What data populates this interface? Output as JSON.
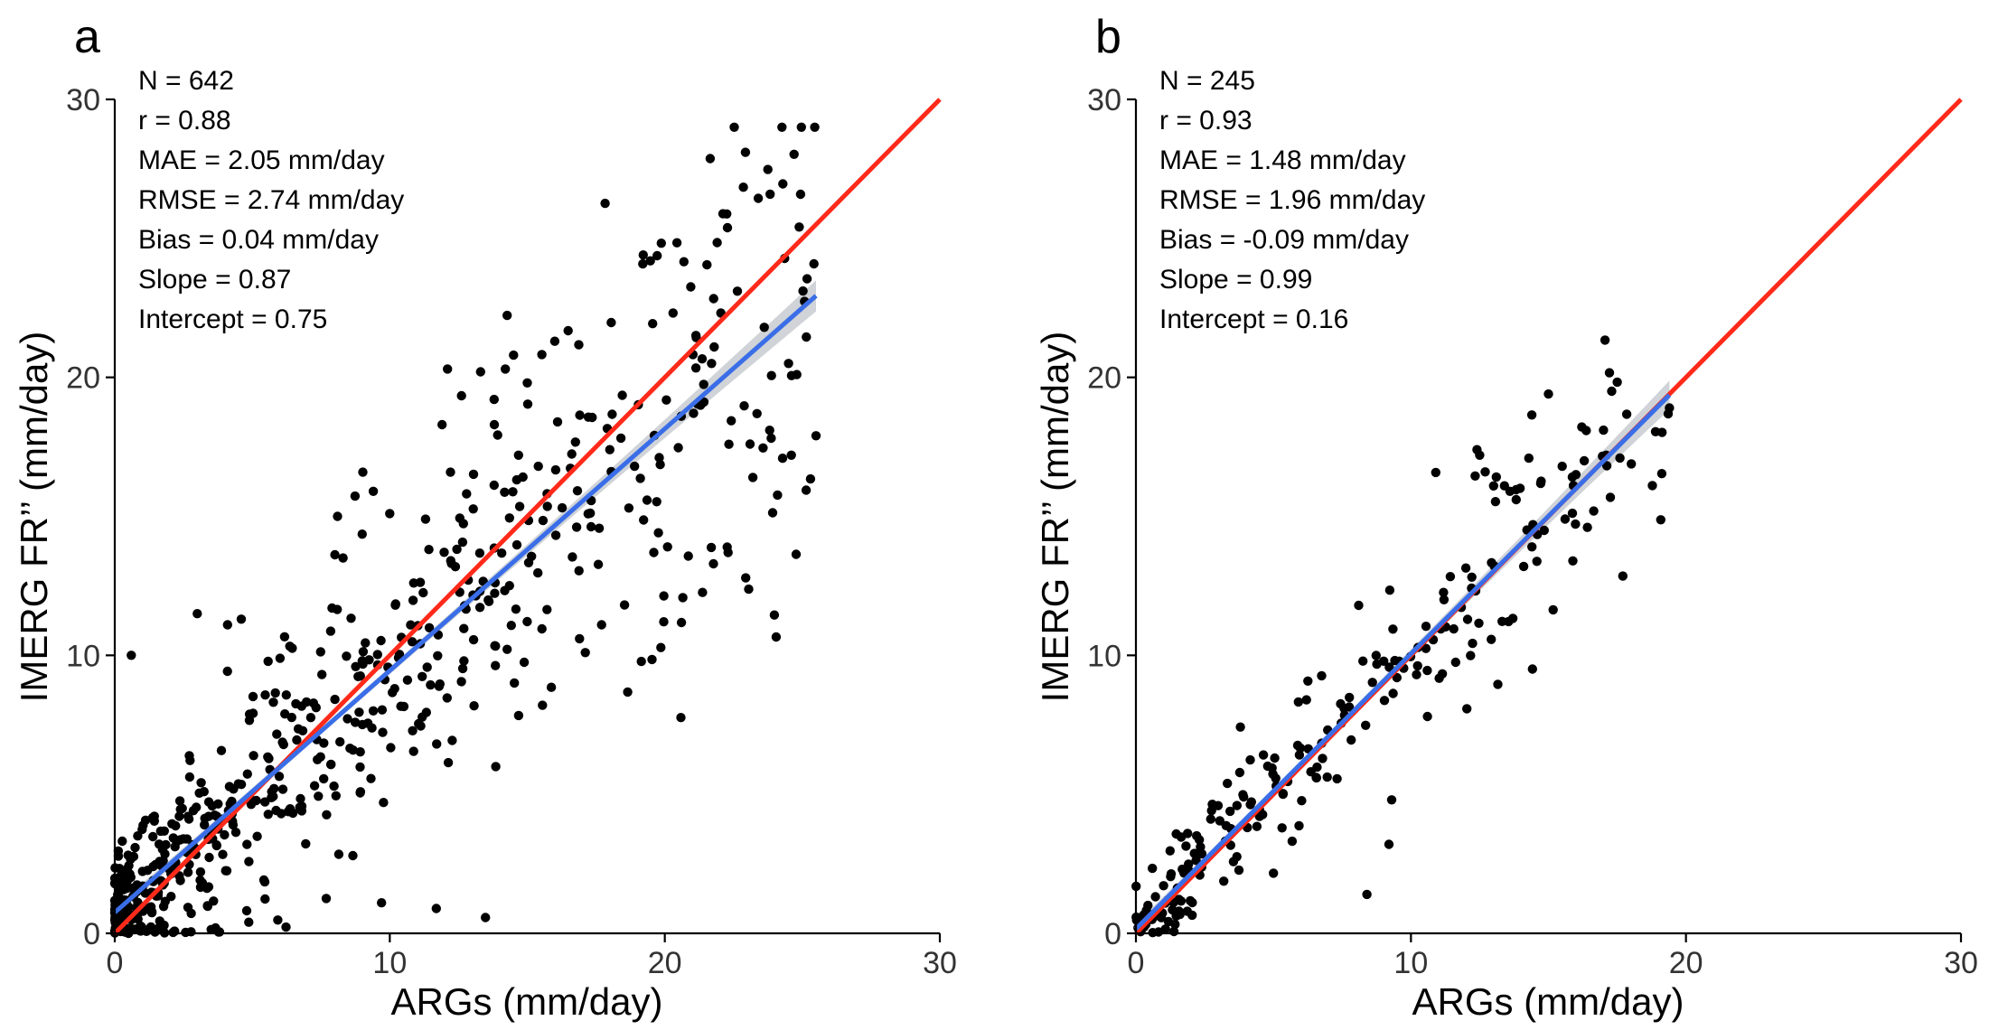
{
  "chart_data": [
    {
      "type": "scatter",
      "panel": "a",
      "xlabel": "ARGs (mm/day)",
      "ylabel": "IMERG FR’’ (mm/day)",
      "xlim": [
        0,
        30
      ],
      "ylim": [
        0,
        30
      ],
      "xticks": [
        "0",
        "10",
        "20",
        "30"
      ],
      "yticks": [
        "0",
        "10",
        "20",
        "30"
      ],
      "grid": false,
      "stats": [
        "N = 642",
        "r = 0.88",
        "MAE = 2.05 mm/day",
        "RMSE = 2.74 mm/day",
        "Bias = 0.04 mm/day",
        "Slope = 0.87",
        "Intercept = 0.75"
      ],
      "one_to_one_line": {
        "color": "#ff2a1a",
        "x": [
          0,
          30
        ],
        "y": [
          0,
          30
        ]
      },
      "regression": {
        "color": "#3a6ee8",
        "slope": 0.87,
        "intercept": 0.75,
        "x_range": [
          0,
          25.5
        ],
        "ci_color": "#c8cbd0"
      },
      "n_points": 642,
      "x_max": 25.5,
      "points_sample": [
        [
          0.6,
          10.0
        ],
        [
          3.0,
          11.5
        ],
        [
          4.1,
          11.1
        ],
        [
          4.6,
          11.3
        ],
        [
          7.9,
          11.7
        ],
        [
          8.1,
          15.0
        ],
        [
          8.3,
          13.5
        ],
        [
          9.4,
          15.9
        ],
        [
          9.7,
          1.1
        ],
        [
          10.0,
          15.1
        ],
        [
          11.3,
          14.9
        ],
        [
          11.9,
          18.3
        ],
        [
          12.1,
          20.3
        ],
        [
          13.3,
          20.2
        ],
        [
          13.8,
          18.3
        ],
        [
          14.2,
          20.3
        ],
        [
          14.5,
          20.8
        ],
        [
          15.0,
          19.8
        ],
        [
          15.4,
          16.8
        ],
        [
          16.0,
          21.3
        ],
        [
          16.1,
          18.4
        ],
        [
          16.9,
          10.6
        ],
        [
          17.7,
          11.1
        ],
        [
          18.0,
          17.4
        ],
        [
          18.9,
          16.8
        ],
        [
          19.6,
          13.7
        ],
        [
          20.1,
          13.9
        ],
        [
          20.6,
          18.6
        ],
        [
          21.3,
          19.0
        ],
        [
          21.7,
          20.5
        ],
        [
          22.3,
          13.7
        ],
        [
          23.1,
          17.6
        ],
        [
          23.2,
          16.4
        ],
        [
          24.5,
          20.5
        ],
        [
          24.6,
          17.2
        ],
        [
          24.8,
          20.1
        ],
        [
          25.5,
          17.9
        ]
      ]
    },
    {
      "type": "scatter",
      "panel": "b",
      "xlabel": "ARGs (mm/day)",
      "ylabel": "IMERG FR’’ (mm/day)",
      "xlim": [
        0,
        30
      ],
      "ylim": [
        0,
        30
      ],
      "xticks": [
        "0",
        "10",
        "20",
        "30"
      ],
      "yticks": [
        "0",
        "10",
        "20",
        "30"
      ],
      "grid": false,
      "stats": [
        "N = 245",
        "r = 0.93",
        "MAE = 1.48 mm/day",
        "RMSE = 1.96 mm/day",
        "Bias = -0.09 mm/day",
        "Slope = 0.99",
        "Intercept = 0.16"
      ],
      "one_to_one_line": {
        "color": "#ff2a1a",
        "x": [
          0,
          30
        ],
        "y": [
          0,
          30
        ]
      },
      "regression": {
        "color": "#3a6ee8",
        "slope": 0.99,
        "intercept": 0.16,
        "x_range": [
          0,
          19.4
        ],
        "ci_color": "#c8cbd0"
      },
      "n_points": 245,
      "x_max": 19.4,
      "points_sample": [
        [
          6.2,
          8.4
        ],
        [
          8.1,
          11.8
        ],
        [
          8.4,
          1.4
        ],
        [
          9.2,
          3.2
        ],
        [
          9.3,
          4.8
        ],
        [
          10.6,
          7.8
        ],
        [
          11.2,
          12.0
        ],
        [
          12.4,
          17.4
        ],
        [
          12.5,
          17.2
        ],
        [
          12.7,
          16.6
        ],
        [
          13.4,
          16.1
        ],
        [
          13.6,
          15.9
        ],
        [
          14.1,
          13.2
        ],
        [
          14.4,
          13.9
        ],
        [
          15.0,
          19.4
        ],
        [
          15.5,
          16.8
        ],
        [
          16.0,
          16.5
        ],
        [
          16.3,
          17.0
        ],
        [
          17.0,
          18.1
        ],
        [
          17.1,
          17.2
        ],
        [
          17.3,
          19.5
        ],
        [
          17.6,
          17.1
        ],
        [
          19.4,
          18.9
        ]
      ]
    }
  ]
}
